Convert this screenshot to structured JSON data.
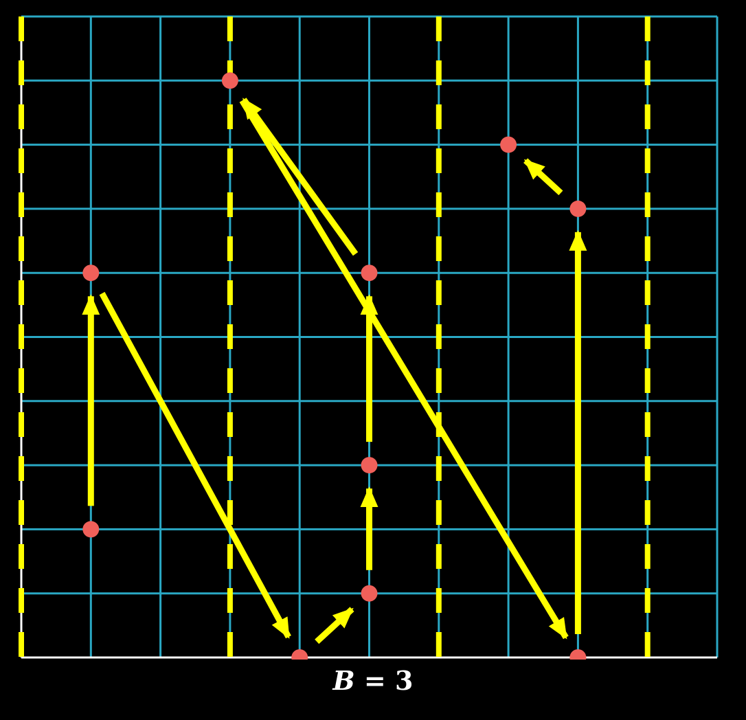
{
  "caption": {
    "variable": "B",
    "equals": " = ",
    "value": "3"
  },
  "colors": {
    "background": "#000000",
    "grid": "#2aa8c4",
    "axis": "#ffffff",
    "boundary": "#ffff00",
    "arrow": "#ffff00",
    "point": "#f0605a"
  },
  "grid": {
    "columns": 10,
    "rows": 10,
    "block_width": 3
  },
  "points": [
    {
      "col": 1,
      "row": 2
    },
    {
      "col": 1,
      "row": 6
    },
    {
      "col": 3,
      "row": 9
    },
    {
      "col": 4,
      "row": 0
    },
    {
      "col": 5,
      "row": 1
    },
    {
      "col": 5,
      "row": 3
    },
    {
      "col": 5,
      "row": 6
    },
    {
      "col": 7,
      "row": 8
    },
    {
      "col": 8,
      "row": 0
    },
    {
      "col": 8,
      "row": 7
    }
  ],
  "arrows": [
    {
      "from": [
        1,
        2
      ],
      "to": [
        1,
        6
      ]
    },
    {
      "from": [
        1,
        6
      ],
      "to": [
        4,
        0
      ]
    },
    {
      "from": [
        4,
        0
      ],
      "to": [
        5,
        1
      ]
    },
    {
      "from": [
        5,
        1
      ],
      "to": [
        5,
        3
      ]
    },
    {
      "from": [
        5,
        3
      ],
      "to": [
        5,
        6
      ]
    },
    {
      "from": [
        5,
        6
      ],
      "to": [
        3,
        9
      ]
    },
    {
      "from": [
        3,
        9
      ],
      "to": [
        8,
        0
      ]
    },
    {
      "from": [
        8,
        0
      ],
      "to": [
        8,
        7
      ]
    },
    {
      "from": [
        8,
        7
      ],
      "to": [
        7,
        8
      ]
    }
  ]
}
